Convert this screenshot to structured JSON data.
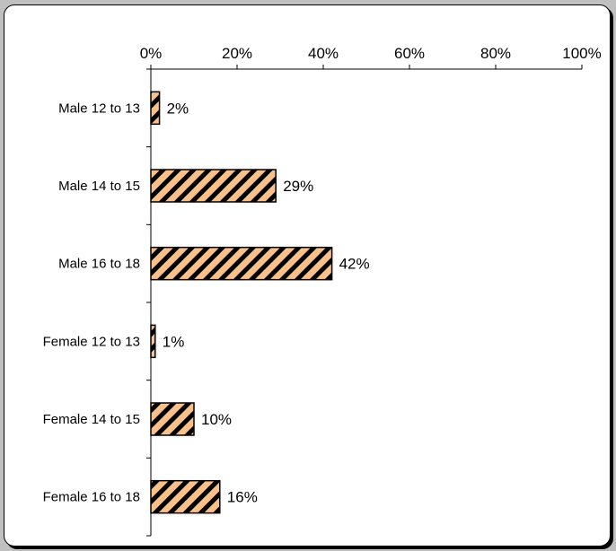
{
  "chart_data": {
    "type": "bar",
    "orientation": "horizontal",
    "categories": [
      "Male 12 to 13",
      "Male 14 to 15",
      "Male 16 to 18",
      "Female 12 to 13",
      "Female 14 to 15",
      "Female 16 to 18"
    ],
    "values": [
      2,
      29,
      42,
      1,
      10,
      16
    ],
    "data_labels": [
      "2%",
      "29%",
      "42%",
      "1%",
      "10%",
      "16%"
    ],
    "x_ticks": [
      "0%",
      "20%",
      "40%",
      "60%",
      "80%",
      "100%"
    ],
    "xlim": [
      0,
      100
    ],
    "x_unit": "percent",
    "axis_position": "top",
    "grid": false,
    "legend": "none",
    "title": "",
    "xlabel": "",
    "ylabel": "",
    "bar_fill_color": "#f9c08a",
    "bar_hatch_color": "#000000",
    "bar_pattern": "diagonal-stripes"
  },
  "colors": {
    "page_background": "#c0c0c0",
    "panel_background": "#ffffff",
    "border": "#000000"
  }
}
